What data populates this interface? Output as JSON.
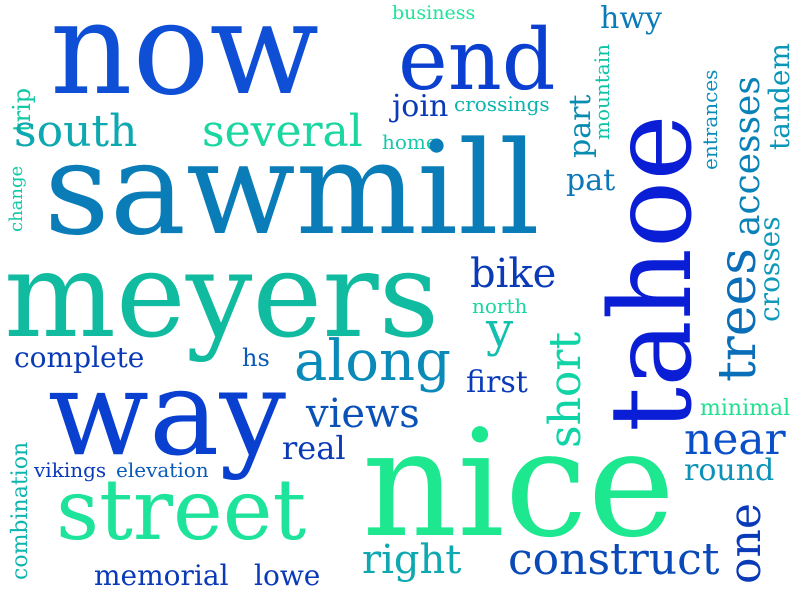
{
  "words": [
    {
      "text": "now",
      "color": "#0f4fd6"
    },
    {
      "text": "end",
      "color": "#0a3fd0"
    },
    {
      "text": "business",
      "color": "#1ee39a"
    },
    {
      "text": "hwy",
      "color": "#0a7bb8"
    },
    {
      "text": "accesses",
      "color": "#0a82b8"
    },
    {
      "text": "tandem",
      "color": "#0a96b8"
    },
    {
      "text": "entrances",
      "color": "#0d8cbc"
    },
    {
      "text": "mountain",
      "color": "#0ec4a6"
    },
    {
      "text": "tahoe",
      "color": "#0a1ed6"
    },
    {
      "text": "trip",
      "color": "#12c9a4"
    },
    {
      "text": "change",
      "color": "#10c8a6"
    },
    {
      "text": "south",
      "color": "#0ea8b0"
    },
    {
      "text": "several",
      "color": "#1ad6a0"
    },
    {
      "text": "join",
      "color": "#0a3ab8"
    },
    {
      "text": "crossings",
      "color": "#0bb4ae"
    },
    {
      "text": "home",
      "color": "#17c9ac"
    },
    {
      "text": "part",
      "color": "#0a8bb0"
    },
    {
      "text": "sawmill",
      "color": "#0a7db8"
    },
    {
      "text": "pat",
      "color": "#0d78b8"
    },
    {
      "text": "trees",
      "color": "#0a6fb8"
    },
    {
      "text": "crosses",
      "color": "#0d9ab8"
    },
    {
      "text": "meyers",
      "color": "#10bba0"
    },
    {
      "text": "bike",
      "color": "#0a3ab8"
    },
    {
      "text": "north",
      "color": "#1ad6a0"
    },
    {
      "text": "y",
      "color": "#12c0b0"
    },
    {
      "text": "complete",
      "color": "#0a3ab8"
    },
    {
      "text": "hs",
      "color": "#0a5ab8"
    },
    {
      "text": "along",
      "color": "#0a8ab8"
    },
    {
      "text": "first",
      "color": "#0a3ab8"
    },
    {
      "text": "short",
      "color": "#10d4a6"
    },
    {
      "text": "minimal",
      "color": "#22e08f"
    },
    {
      "text": "way",
      "color": "#0a40d0"
    },
    {
      "text": "views",
      "color": "#0a52b8"
    },
    {
      "text": "near",
      "color": "#0a4fc8"
    },
    {
      "text": "real",
      "color": "#0a3ab8"
    },
    {
      "text": "round",
      "color": "#0a92b8"
    },
    {
      "text": "combination",
      "color": "#0fb4ae"
    },
    {
      "text": "vikings",
      "color": "#0a3ab8"
    },
    {
      "text": "elevation",
      "color": "#0a5ab8"
    },
    {
      "text": "nice",
      "color": "#1de890"
    },
    {
      "text": "street",
      "color": "#1ee39a"
    },
    {
      "text": "one",
      "color": "#0a3ab8"
    },
    {
      "text": "right",
      "color": "#0ea8b0"
    },
    {
      "text": "construct",
      "color": "#0a4ab8"
    },
    {
      "text": "memorial",
      "color": "#0a3ab8"
    },
    {
      "text": "lowe",
      "color": "#0a3ab8"
    }
  ]
}
